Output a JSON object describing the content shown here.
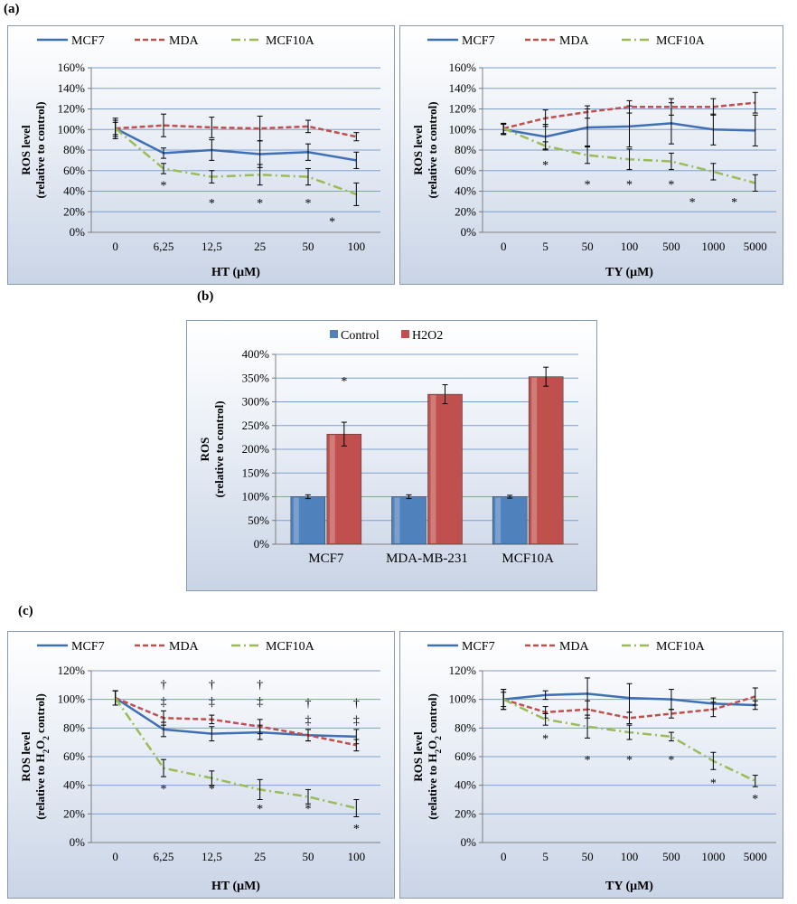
{
  "panel_labels": {
    "a": "(a)",
    "b": "(b)",
    "c": "(c)"
  },
  "colors": {
    "MCF7": "#3f6fb5",
    "MDA": "#c0504d",
    "MCF10A": "#9bbb59",
    "grid": "#7f9fd0",
    "bar_control": "#4f81bd",
    "bar_h2o2": "#c0504d"
  },
  "chart_data": [
    {
      "id": "a_ht",
      "type": "line",
      "legend": [
        "MCF7",
        "MDA",
        "MCF10A"
      ],
      "ylabel_lines": [
        "ROS level",
        "(relative to control)"
      ],
      "xlabel": "HT (μM)",
      "categories": [
        "0",
        "6,25",
        "12,5",
        "25",
        "50",
        "100"
      ],
      "yticks": [
        "0%",
        "20%",
        "40%",
        "60%",
        "80%",
        "100%",
        "120%",
        "140%",
        "160%"
      ],
      "ylim": [
        0,
        160
      ],
      "series": [
        {
          "name": "MCF7",
          "values": [
            101,
            77,
            80,
            76,
            78,
            70
          ],
          "errors": [
            6,
            5,
            10,
            13,
            8,
            8
          ]
        },
        {
          "name": "MDA",
          "values": [
            101,
            104,
            102,
            101,
            103,
            93
          ],
          "errors": [
            8,
            11,
            10,
            12,
            6,
            4
          ]
        },
        {
          "name": "MCF10A",
          "values": [
            101,
            62,
            54,
            56,
            54,
            37
          ],
          "errors": [
            10,
            5,
            6,
            10,
            8,
            11
          ]
        }
      ],
      "annotations": [
        {
          "text": "*",
          "x": 1,
          "y": 46
        },
        {
          "text": "*",
          "x": 2,
          "y": 29
        },
        {
          "text": "*",
          "x": 3,
          "y": 29
        },
        {
          "text": "*",
          "x": 4,
          "y": 29
        },
        {
          "text": "*",
          "x": 4.5,
          "y": 11
        }
      ]
    },
    {
      "id": "a_ty",
      "type": "line",
      "legend": [
        "MCF7",
        "MDA",
        "MCF10A"
      ],
      "ylabel_lines": [
        "ROS level",
        "(relative to control)"
      ],
      "xlabel": "TY (μM)",
      "categories": [
        "0",
        "5",
        "50",
        "100",
        "500",
        "1000",
        "5000"
      ],
      "yticks": [
        "0%",
        "20%",
        "40%",
        "60%",
        "80%",
        "100%",
        "120%",
        "140%",
        "160%"
      ],
      "ylim": [
        0,
        160
      ],
      "series": [
        {
          "name": "MCF7",
          "values": [
            100,
            93,
            102,
            103,
            106,
            100,
            99
          ],
          "errors": [
            5,
            12,
            18,
            20,
            20,
            15,
            15
          ]
        },
        {
          "name": "MDA",
          "values": [
            101,
            111,
            117,
            122,
            122,
            122,
            126
          ],
          "errors": [
            5,
            8,
            6,
            6,
            8,
            8,
            10
          ]
        },
        {
          "name": "MCF10A",
          "values": [
            101,
            84,
            75,
            71,
            69,
            59,
            48
          ],
          "errors": [
            5,
            4,
            8,
            10,
            8,
            8,
            8
          ]
        }
      ],
      "annotations": [
        {
          "text": "*",
          "x": 1,
          "y": 66
        },
        {
          "text": "*",
          "x": 2,
          "y": 47
        },
        {
          "text": "*",
          "x": 3,
          "y": 47
        },
        {
          "text": "*",
          "x": 4,
          "y": 47
        },
        {
          "text": "*",
          "x": 4.5,
          "y": 30
        },
        {
          "text": "*",
          "x": 5.5,
          "y": 30
        }
      ]
    },
    {
      "id": "b_bar",
      "type": "bar",
      "legend": [
        "Control",
        "H2O2"
      ],
      "ylabel_lines": [
        "ROS",
        "(relative to control)"
      ],
      "categories": [
        "MCF7",
        "MDA-MB-231",
        "MCF10A"
      ],
      "yticks": [
        "0%",
        "50%",
        "100%",
        "150%",
        "200%",
        "250%",
        "300%",
        "350%",
        "400%"
      ],
      "ylim": [
        0,
        400
      ],
      "series": [
        {
          "name": "Control",
          "values": [
            100,
            100,
            100
          ],
          "errors": [
            4,
            4,
            3
          ]
        },
        {
          "name": "H2O2",
          "values": [
            232,
            316,
            353
          ],
          "errors": [
            25,
            20,
            20
          ]
        }
      ],
      "annotations": [
        {
          "text": "*",
          "x": 0,
          "y": 345
        }
      ]
    },
    {
      "id": "c_ht",
      "type": "line",
      "legend": [
        "MCF7",
        "MDA",
        "MCF10A"
      ],
      "ylabel_lines": [
        "ROS level",
        "(relative to H2O2 control)"
      ],
      "xlabel": "HT (μM)",
      "categories": [
        "0",
        "6,25",
        "12,5",
        "25",
        "50",
        "100"
      ],
      "yticks": [
        "0%",
        "20%",
        "40%",
        "60%",
        "80%",
        "100%",
        "120%"
      ],
      "ylim": [
        0,
        120
      ],
      "series": [
        {
          "name": "MCF7",
          "values": [
            101,
            79,
            76,
            77,
            75,
            74
          ],
          "errors": [
            5,
            5,
            5,
            5,
            4,
            5
          ]
        },
        {
          "name": "MDA",
          "values": [
            101,
            87,
            86,
            81,
            75,
            68
          ],
          "errors": [
            5,
            5,
            3,
            5,
            4,
            4
          ]
        },
        {
          "name": "MCF10A",
          "values": [
            101,
            52,
            45,
            37,
            32,
            24
          ],
          "errors": [
            5,
            6,
            5,
            7,
            5,
            6
          ]
        }
      ],
      "annotations": [
        {
          "text": "†",
          "x": 1,
          "y": 111
        },
        {
          "text": "‡",
          "x": 1,
          "y": 99
        },
        {
          "text": "†",
          "x": 2,
          "y": 111
        },
        {
          "text": "‡",
          "x": 2,
          "y": 99
        },
        {
          "text": "†",
          "x": 3,
          "y": 111
        },
        {
          "text": "‡",
          "x": 3,
          "y": 99
        },
        {
          "text": "†",
          "x": 4,
          "y": 98
        },
        {
          "text": "‡",
          "x": 4,
          "y": 86
        },
        {
          "text": "†",
          "x": 5,
          "y": 98
        },
        {
          "text": "‡",
          "x": 5,
          "y": 86
        },
        {
          "text": "*",
          "x": 1,
          "y": 38
        },
        {
          "text": "*",
          "x": 2,
          "y": 38
        },
        {
          "text": "*",
          "x": 3,
          "y": 24
        },
        {
          "text": "*",
          "x": 4,
          "y": 24
        },
        {
          "text": "*",
          "x": 5,
          "y": 10
        }
      ]
    },
    {
      "id": "c_ty",
      "type": "line",
      "legend": [
        "MCF7",
        "MDA",
        "MCF10A"
      ],
      "ylabel_lines": [
        "ROS level",
        "(relative to H2O2 control)"
      ],
      "xlabel": "TY (μM)",
      "categories": [
        "0",
        "5",
        "50",
        "100",
        "500",
        "1000",
        "5000"
      ],
      "yticks": [
        "0%",
        "20%",
        "40%",
        "60%",
        "80%",
        "100%",
        "120%"
      ],
      "ylim": [
        0,
        120
      ],
      "series": [
        {
          "name": "MCF7",
          "values": [
            100,
            103,
            104,
            101,
            100,
            97,
            96
          ],
          "errors": [
            7,
            3,
            11,
            10,
            7,
            4,
            3
          ]
        },
        {
          "name": "MDA",
          "values": [
            100,
            91,
            93,
            87,
            90,
            93,
            102
          ],
          "errors": [
            5,
            4,
            6,
            4,
            3,
            5,
            6
          ]
        },
        {
          "name": "MCF10A",
          "values": [
            100,
            86,
            81,
            77,
            74,
            57,
            43
          ],
          "errors": [
            7,
            4,
            8,
            5,
            3,
            6,
            4
          ]
        }
      ],
      "annotations": [
        {
          "text": "*",
          "x": 1,
          "y": 73
        },
        {
          "text": "*",
          "x": 2,
          "y": 58
        },
        {
          "text": "*",
          "x": 3,
          "y": 58
        },
        {
          "text": "*",
          "x": 4,
          "y": 58
        },
        {
          "text": "*",
          "x": 5,
          "y": 42
        },
        {
          "text": "*",
          "x": 6,
          "y": 31
        }
      ]
    }
  ]
}
